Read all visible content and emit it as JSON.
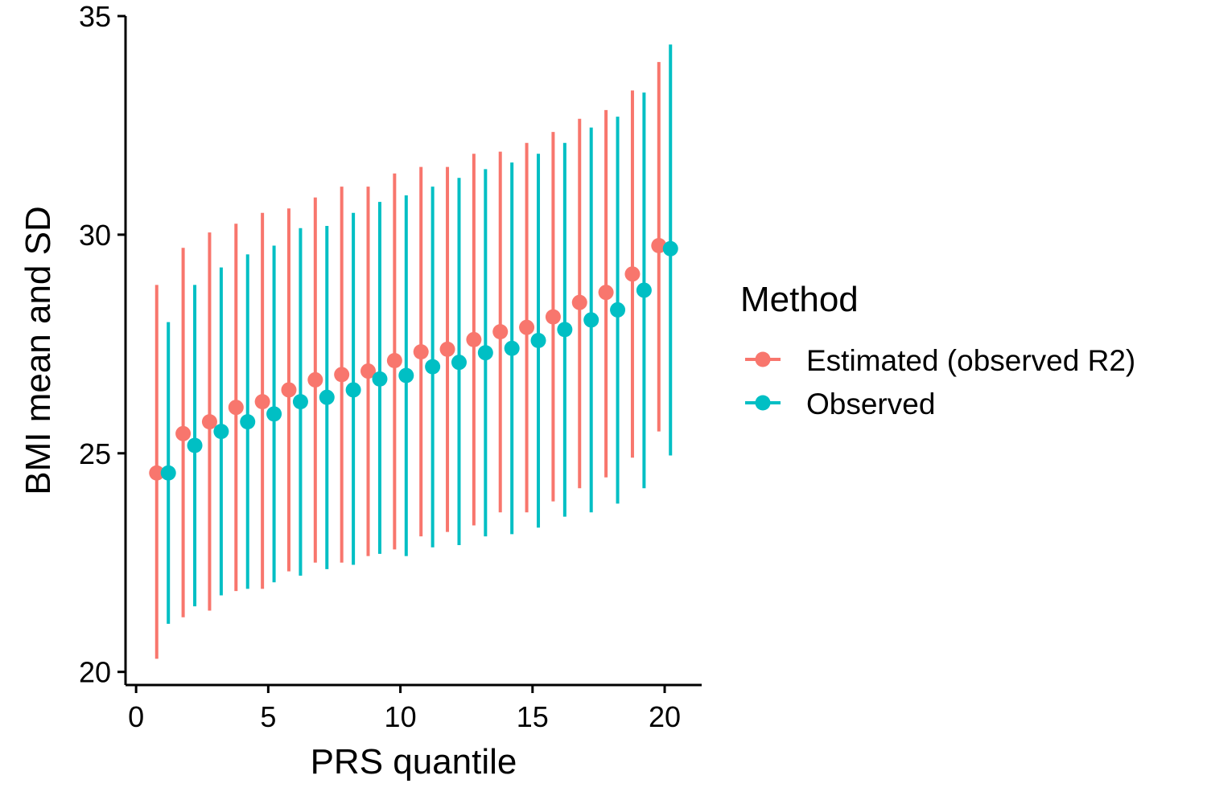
{
  "chart_data": {
    "type": "scatter",
    "title": "",
    "xlabel": "PRS quantile",
    "ylabel": "BMI mean and SD",
    "xlim": [
      -0.4,
      21.4
    ],
    "ylim": [
      19.7,
      35.0
    ],
    "x_ticks": [
      0,
      5,
      10,
      15,
      20
    ],
    "y_ticks": [
      20,
      25,
      30,
      35
    ],
    "x_tick_labels": [
      "0",
      "5",
      "10",
      "15",
      "20"
    ],
    "y_tick_labels": [
      "20",
      "25",
      "30",
      "35"
    ],
    "grid": false,
    "legend": {
      "title": "Method",
      "placement": "right"
    },
    "dodge_offset": 0.22,
    "x": [
      1,
      2,
      3,
      4,
      5,
      6,
      7,
      8,
      9,
      10,
      11,
      12,
      13,
      14,
      15,
      16,
      17,
      18,
      19,
      20
    ],
    "series": [
      {
        "name": "Estimated (observed R2)",
        "color": "#F8766D",
        "mean": [
          24.55,
          25.45,
          25.72,
          26.05,
          26.18,
          26.45,
          26.68,
          26.8,
          26.88,
          27.12,
          27.32,
          27.38,
          27.6,
          27.78,
          27.88,
          28.12,
          28.45,
          28.68,
          29.1,
          29.75
        ],
        "sd_low": [
          20.3,
          21.25,
          21.4,
          21.85,
          21.9,
          22.3,
          22.5,
          22.5,
          22.65,
          22.8,
          23.1,
          23.2,
          23.35,
          23.65,
          23.65,
          23.9,
          24.2,
          24.45,
          24.9,
          25.5
        ],
        "sd_high": [
          28.85,
          29.7,
          30.05,
          30.25,
          30.5,
          30.6,
          30.85,
          31.1,
          31.1,
          31.4,
          31.55,
          31.55,
          31.85,
          31.9,
          32.1,
          32.35,
          32.65,
          32.85,
          33.3,
          33.95
        ]
      },
      {
        "name": "Observed",
        "color": "#00BFC4",
        "mean": [
          24.55,
          25.18,
          25.5,
          25.72,
          25.9,
          26.18,
          26.28,
          26.45,
          26.7,
          26.78,
          26.98,
          27.08,
          27.3,
          27.4,
          27.58,
          27.83,
          28.05,
          28.28,
          28.73,
          29.68
        ],
        "sd_low": [
          21.1,
          21.5,
          21.75,
          21.9,
          22.05,
          22.2,
          22.35,
          22.45,
          22.7,
          22.65,
          22.85,
          22.9,
          23.1,
          23.15,
          23.3,
          23.55,
          23.65,
          23.85,
          24.2,
          24.95
        ],
        "sd_high": [
          28.0,
          28.85,
          29.25,
          29.55,
          29.75,
          30.15,
          30.2,
          30.5,
          30.75,
          30.9,
          31.1,
          31.3,
          31.5,
          31.65,
          31.85,
          32.1,
          32.45,
          32.7,
          33.25,
          34.35
        ]
      }
    ]
  }
}
